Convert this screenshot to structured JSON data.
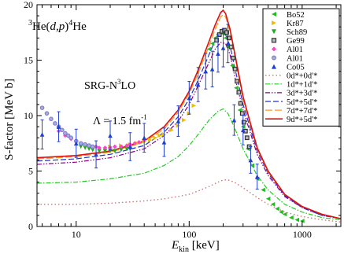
{
  "chart_data": {
    "type": "scatter",
    "title": "",
    "reaction_label": {
      "pre1": "3",
      "mid1": "He(",
      "d": "d",
      "comma": ",",
      "p": "p",
      "close": ")",
      "pre2": "4",
      "mid2": "He"
    },
    "method_label": {
      "base": "SRG-N",
      "sup": "3",
      "tail": "LO"
    },
    "lambda_label": {
      "base": "Λ = 1.5 fm",
      "sup": "-1"
    },
    "xlabel": {
      "base": "E",
      "sub": "kin",
      "unit": " [keV]"
    },
    "ylabel": "S-factor [MeV b]",
    "x_scale": "log",
    "xlim": [
      4.5,
      2200
    ],
    "ylim": [
      0,
      20
    ],
    "x_ticks": [
      10,
      100,
      1000
    ],
    "x_tick_labels": [
      "10",
      "100",
      "1000"
    ],
    "y_ticks": [
      0,
      5,
      10,
      15,
      20
    ],
    "y_tick_labels": [
      "0",
      "5",
      "10",
      "15",
      "20"
    ],
    "legend_position": "top-right",
    "series": [
      {
        "name": "Bo52",
        "kind": "points",
        "marker": "triangle-left",
        "color": "#22bb22",
        "x": [
          150,
          160,
          170,
          180,
          190,
          200,
          210,
          220,
          240,
          260,
          280,
          300,
          330,
          360,
          400,
          450,
          500,
          550,
          600,
          650,
          700,
          800,
          900,
          1000
        ],
        "y": [
          16.0,
          16.5,
          17.0,
          17.3,
          17.5,
          17.4,
          17.0,
          16.2,
          14.5,
          12.5,
          10.5,
          9.0,
          7.0,
          5.5,
          4.3,
          3.3,
          2.5,
          2.0,
          1.6,
          1.3,
          1.1,
          0.8,
          0.6,
          0.5
        ]
      },
      {
        "name": "Kr87",
        "kind": "points",
        "marker": "triangle-right",
        "color": "#e8c000",
        "x": [
          20,
          25,
          30,
          35,
          40,
          45,
          50,
          55,
          60,
          70,
          80,
          90,
          100,
          110
        ],
        "y": [
          7.2,
          7.3,
          7.4,
          7.5,
          7.7,
          7.8,
          8.0,
          8.2,
          8.3,
          8.7,
          9.1,
          9.6,
          10.2,
          10.9
        ]
      },
      {
        "name": "Sch89",
        "kind": "points",
        "marker": "triangle-down",
        "color": "#22aa22",
        "x": [
          11,
          12,
          13,
          14,
          16,
          18,
          20,
          22,
          25,
          28,
          30
        ],
        "y": [
          7.2,
          7.1,
          7.0,
          6.9,
          6.8,
          6.8,
          6.8,
          6.8,
          6.9,
          7.0,
          7.0
        ]
      },
      {
        "name": "Ge99",
        "kind": "points",
        "marker": "square",
        "color": "#333333",
        "x": [
          175,
          185,
          195,
          205,
          215,
          225,
          235,
          245,
          255,
          265,
          275,
          285,
          295,
          305,
          315,
          325,
          340
        ],
        "y": [
          16.8,
          17.3,
          17.6,
          17.7,
          17.5,
          17.0,
          16.2,
          15.2,
          14.2,
          13.1,
          12.1,
          11.1,
          10.2,
          9.4,
          8.6,
          8.0,
          7.2
        ]
      },
      {
        "name": "Al01",
        "kind": "points",
        "marker": "diamond",
        "color": "#ff44cc",
        "x": [
          7,
          8,
          9,
          10,
          11,
          12,
          13,
          14,
          15,
          16,
          18,
          20,
          22,
          25,
          28,
          30,
          33,
          36,
          40
        ],
        "y": [
          8.6,
          8.2,
          7.9,
          7.7,
          7.5,
          7.4,
          7.3,
          7.2,
          7.2,
          7.1,
          7.1,
          7.1,
          7.2,
          7.2,
          7.3,
          7.4,
          7.5,
          7.6,
          7.8
        ]
      },
      {
        "name": "Al01",
        "kind": "points",
        "marker": "circle",
        "color": "#7777cc",
        "x": [
          5,
          5.5,
          6,
          6.5,
          7,
          7.5,
          8,
          8.5,
          9,
          10,
          11,
          12,
          13,
          14
        ],
        "y": [
          10.7,
          10.2,
          9.7,
          9.3,
          9.0,
          8.7,
          8.4,
          8.2,
          8.0,
          7.7,
          7.5,
          7.4,
          7.3,
          7.2
        ]
      },
      {
        "name": "Co05",
        "kind": "points",
        "marker": "triangle-up",
        "color": "#1f3fd0",
        "x": [
          5,
          7,
          10,
          15,
          20,
          30,
          40,
          60,
          80,
          100,
          120,
          140,
          160,
          180,
          200,
          220,
          250,
          300,
          350,
          400
        ],
        "y": [
          8.3,
          9.0,
          7.5,
          6.5,
          8.2,
          7.2,
          8.0,
          7.6,
          9.5,
          11.6,
          12.8,
          14.0,
          14.2,
          15.6,
          16.1,
          16.5,
          9.6,
          8.7,
          6.0,
          4.5
        ]
      },
      {
        "name": "0d*+0d'*",
        "kind": "line",
        "color": "#cc7777",
        "dash": "1.5,3",
        "width": 1.4,
        "x": [
          4.5,
          10,
          20,
          40,
          60,
          80,
          100,
          120,
          150,
          180,
          200,
          220,
          250,
          300,
          400,
          500,
          700,
          1000,
          1500,
          2200
        ],
        "y": [
          2.0,
          2.0,
          2.1,
          2.3,
          2.5,
          2.7,
          2.9,
          3.2,
          3.6,
          4.0,
          4.2,
          4.2,
          4.0,
          3.5,
          2.6,
          2.0,
          1.3,
          0.9,
          0.6,
          0.4
        ]
      },
      {
        "name": "1d*+1d'*",
        "kind": "line",
        "color": "#22cc22",
        "dash": "6,2,1.5,2",
        "width": 1.2,
        "x": [
          4.5,
          10,
          20,
          40,
          60,
          80,
          100,
          120,
          150,
          180,
          200,
          220,
          250,
          300,
          400,
          500,
          700,
          1000,
          1500,
          2200
        ],
        "y": [
          3.9,
          4.0,
          4.3,
          4.8,
          5.5,
          6.3,
          7.3,
          8.3,
          9.6,
          10.4,
          10.6,
          10.2,
          9.0,
          7.0,
          4.6,
          3.3,
          2.0,
          1.3,
          0.8,
          0.6
        ]
      },
      {
        "name": "3d*+3d'*",
        "kind": "line",
        "color": "#880088",
        "dash": "6,2,1.5,2,1.5,2",
        "width": 1.2,
        "x": [
          4.5,
          10,
          20,
          40,
          60,
          80,
          100,
          120,
          150,
          170,
          190,
          210,
          230,
          260,
          300,
          400,
          500,
          700,
          1000,
          1500,
          2200
        ],
        "y": [
          5.6,
          5.8,
          6.2,
          7.0,
          8.2,
          9.5,
          11.0,
          12.7,
          14.8,
          16.0,
          16.6,
          16.5,
          15.5,
          13.0,
          10.5,
          6.5,
          4.6,
          2.7,
          1.7,
          1.0,
          0.7
        ]
      },
      {
        "name": "5d*+5d'*",
        "kind": "line",
        "color": "#2233cc",
        "dash": "7,3",
        "width": 1.2,
        "x": [
          4.5,
          10,
          20,
          40,
          60,
          80,
          100,
          120,
          150,
          170,
          190,
          210,
          230,
          260,
          300,
          400,
          500,
          700,
          1000,
          1500,
          2200
        ],
        "y": [
          5.9,
          6.1,
          6.5,
          7.3,
          8.5,
          9.9,
          11.5,
          13.2,
          15.5,
          16.8,
          17.4,
          17.3,
          16.3,
          13.8,
          11.0,
          6.8,
          4.8,
          2.8,
          1.7,
          1.0,
          0.7
        ]
      },
      {
        "name": "7d*+7d'*",
        "kind": "line",
        "color": "#ff9922",
        "dash": "9,3",
        "width": 1.3,
        "x": [
          4.5,
          10,
          20,
          40,
          60,
          80,
          100,
          120,
          150,
          170,
          190,
          200,
          210,
          230,
          260,
          300,
          400,
          500,
          700,
          1000,
          1500,
          2200
        ],
        "y": [
          6.1,
          6.3,
          6.7,
          7.6,
          8.8,
          10.3,
          12.0,
          13.8,
          16.3,
          17.8,
          18.9,
          19.1,
          18.9,
          17.6,
          14.8,
          11.5,
          7.0,
          4.9,
          2.9,
          1.8,
          1.1,
          0.7
        ]
      },
      {
        "name": "9d*+5d'*",
        "kind": "line",
        "color": "#dd1111",
        "dash": "",
        "width": 1.6,
        "x": [
          4.5,
          10,
          20,
          40,
          60,
          80,
          100,
          120,
          150,
          170,
          190,
          200,
          210,
          230,
          260,
          300,
          400,
          500,
          700,
          1000,
          1500,
          2200
        ],
        "y": [
          6.2,
          6.4,
          6.8,
          7.7,
          9.0,
          10.5,
          12.2,
          14.1,
          16.7,
          18.2,
          19.3,
          19.5,
          19.2,
          17.8,
          15.0,
          11.7,
          7.1,
          5.0,
          2.9,
          1.8,
          1.1,
          0.7
        ]
      }
    ]
  }
}
